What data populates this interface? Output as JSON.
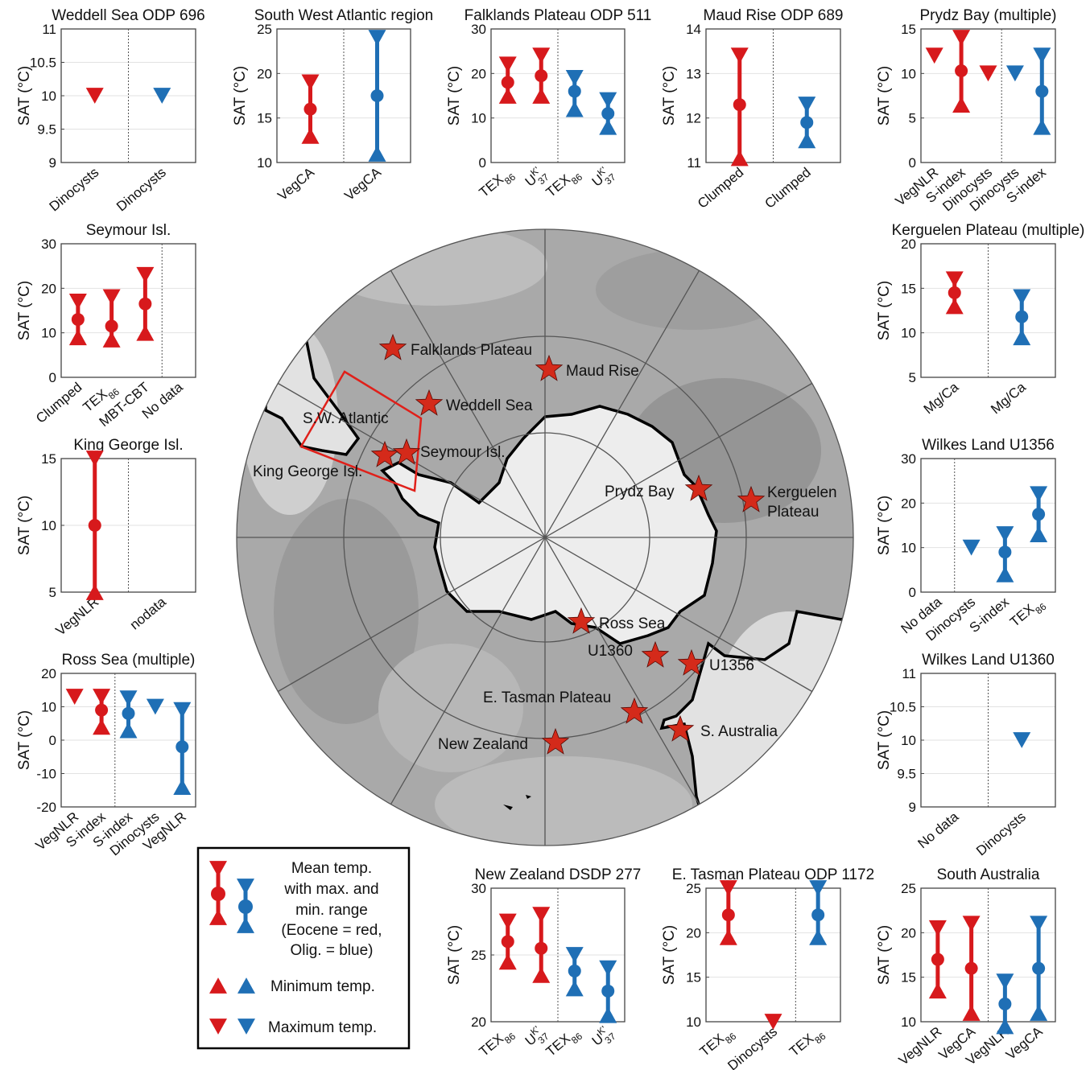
{
  "colors": {
    "eocene": "#d7191c",
    "oligocene": "#1f6fb5",
    "axis": "#333333",
    "grid": "#dddddd",
    "star": "#d42a1a"
  },
  "chart_data": [
    {
      "type": "range",
      "title": "Weddell Sea ODP 696",
      "ylabel": "SAT (°C)",
      "ylim": [
        9,
        11
      ],
      "yticks": [
        9,
        9.5,
        10,
        10.5,
        11
      ],
      "categories": [
        "Dinocysts",
        "Dinocysts"
      ],
      "divider": 1.5,
      "series": [
        {
          "color": "red",
          "x": 1,
          "max": 10
        },
        {
          "color": "blue",
          "x": 2,
          "max": 10
        }
      ]
    },
    {
      "type": "range",
      "title": "South West Atlantic region",
      "ylabel": "SAT (°C)",
      "ylim": [
        10,
        25
      ],
      "yticks": [
        10,
        15,
        20,
        25
      ],
      "categories": [
        "VegCA",
        "VegCA"
      ],
      "divider": 1.5,
      "series": [
        {
          "color": "red",
          "x": 1,
          "min": 13,
          "mean": 16,
          "max": 19
        },
        {
          "color": "blue",
          "x": 2,
          "min": 11,
          "mean": 17.5,
          "max": 24
        }
      ]
    },
    {
      "type": "range",
      "title": "Falklands Plateau ODP 511",
      "ylabel": "SAT (°C)",
      "ylim": [
        0,
        30
      ],
      "yticks": [
        0,
        10,
        20,
        30
      ],
      "categories": [
        "TEX86",
        "U^K'37",
        "TEX86",
        "U^K'37"
      ],
      "divider": 2.5,
      "series": [
        {
          "color": "red",
          "x": 1,
          "min": 15,
          "mean": 18,
          "max": 22
        },
        {
          "color": "red",
          "x": 2,
          "min": 15,
          "mean": 19.5,
          "max": 24
        },
        {
          "color": "blue",
          "x": 3,
          "min": 12,
          "mean": 16,
          "max": 19
        },
        {
          "color": "blue",
          "x": 4,
          "min": 8,
          "mean": 11,
          "max": 14
        }
      ]
    },
    {
      "type": "range",
      "title": "Maud Rise ODP 689",
      "ylabel": "SAT (°C)",
      "ylim": [
        11,
        14
      ],
      "yticks": [
        11,
        12,
        13,
        14
      ],
      "categories": [
        "Clumped",
        "Clumped"
      ],
      "divider": 1.5,
      "series": [
        {
          "color": "red",
          "x": 1,
          "min": 11.1,
          "mean": 12.3,
          "max": 13.4
        },
        {
          "color": "blue",
          "x": 2,
          "min": 11.5,
          "mean": 11.9,
          "max": 12.3
        }
      ]
    },
    {
      "type": "range",
      "title": "Prydz Bay (multiple)",
      "ylabel": "SAT (°C)",
      "ylim": [
        0,
        15
      ],
      "yticks": [
        0,
        5,
        10,
        15
      ],
      "categories": [
        "VegNLR",
        "S-index",
        "Dinocysts",
        "Dinocysts",
        "S-index"
      ],
      "divider": 3.5,
      "series": [
        {
          "color": "red",
          "x": 1,
          "max": 12
        },
        {
          "color": "red",
          "x": 2,
          "min": 6.5,
          "mean": 10.3,
          "max": 14
        },
        {
          "color": "red",
          "x": 3,
          "max": 10
        },
        {
          "color": "blue",
          "x": 4,
          "max": 10
        },
        {
          "color": "blue",
          "x": 5,
          "min": 4,
          "mean": 8,
          "max": 12
        }
      ]
    },
    {
      "type": "range",
      "title": "Seymour Isl.",
      "ylabel": "SAT (°C)",
      "ylim": [
        0,
        30
      ],
      "yticks": [
        0,
        10,
        20,
        30
      ],
      "categories": [
        "Clumped",
        "TEX86",
        "MBT-CBT",
        "No data"
      ],
      "divider": 3.5,
      "series": [
        {
          "color": "red",
          "x": 1,
          "min": 9,
          "mean": 13,
          "max": 17
        },
        {
          "color": "red",
          "x": 2,
          "min": 8.5,
          "mean": 11.5,
          "max": 18
        },
        {
          "color": "red",
          "x": 3,
          "min": 10,
          "mean": 16.5,
          "max": 23
        }
      ]
    },
    {
      "type": "range",
      "title": "Kerguelen Plateau (multiple)",
      "ylabel": "SAT (°C)",
      "ylim": [
        5,
        20
      ],
      "yticks": [
        5,
        10,
        15,
        20
      ],
      "categories": [
        "Mg/Ca",
        "Mg/Ca"
      ],
      "divider": 1.5,
      "series": [
        {
          "color": "red",
          "x": 1,
          "min": 13,
          "mean": 14.5,
          "max": 16
        },
        {
          "color": "blue",
          "x": 2,
          "min": 9.5,
          "mean": 11.8,
          "max": 14
        }
      ]
    },
    {
      "type": "range",
      "title": "King George Isl.",
      "ylabel": "SAT (°C)",
      "ylim": [
        5,
        15
      ],
      "yticks": [
        5,
        10,
        15
      ],
      "categories": [
        "VegNLR",
        "nodata"
      ],
      "divider": 1.5,
      "series": [
        {
          "color": "red",
          "x": 1,
          "min": 5,
          "mean": 10,
          "max": 15
        }
      ]
    },
    {
      "type": "range",
      "title": "Wilkes Land U1356",
      "ylabel": "SAT (°C)",
      "ylim": [
        0,
        30
      ],
      "yticks": [
        0,
        10,
        20,
        30
      ],
      "categories": [
        "No data",
        "Dinocysts",
        "S-index",
        "TEX86"
      ],
      "divider": 1.5,
      "series": [
        {
          "color": "blue",
          "x": 2,
          "max": 10
        },
        {
          "color": "blue",
          "x": 3,
          "min": 4,
          "mean": 9,
          "max": 13
        },
        {
          "color": "blue",
          "x": 4,
          "min": 13,
          "mean": 17.5,
          "max": 22
        }
      ]
    },
    {
      "type": "range",
      "title": "Ross Sea (multiple)",
      "ylabel": "SAT (°C)",
      "ylim": [
        -20,
        20
      ],
      "yticks": [
        -20,
        -10,
        0,
        10,
        20
      ],
      "categories": [
        "VegNLR",
        "S-index",
        "S-index",
        "Dinocysts",
        "VegNLR"
      ],
      "divider": 2.5,
      "series": [
        {
          "color": "red",
          "x": 1,
          "max": 13
        },
        {
          "color": "red",
          "x": 2,
          "min": 4,
          "mean": 9,
          "max": 13
        },
        {
          "color": "blue",
          "x": 3,
          "min": 3,
          "mean": 8,
          "max": 12.5
        },
        {
          "color": "blue",
          "x": 4,
          "max": 10
        },
        {
          "color": "blue",
          "x": 5,
          "min": -14,
          "mean": -2,
          "max": 9
        }
      ]
    },
    {
      "type": "range",
      "title": "Wilkes Land U1360",
      "ylabel": "SAT (°C)",
      "ylim": [
        9,
        11
      ],
      "yticks": [
        9,
        9.5,
        10,
        10.5,
        11
      ],
      "categories": [
        "No data",
        "Dinocysts"
      ],
      "divider": 1.5,
      "series": [
        {
          "color": "blue",
          "x": 2,
          "max": 10
        }
      ]
    },
    {
      "type": "range",
      "title": "New Zealand DSDP 277",
      "ylabel": "SAT (°C)",
      "ylim": [
        20,
        30
      ],
      "yticks": [
        20,
        25,
        30
      ],
      "categories": [
        "TEX86",
        "U^K'37",
        "TEX86",
        "U^K'37"
      ],
      "divider": 2.5,
      "series": [
        {
          "color": "red",
          "x": 1,
          "min": 24.5,
          "mean": 26,
          "max": 27.5
        },
        {
          "color": "red",
          "x": 2,
          "min": 23.5,
          "mean": 25.5,
          "max": 28
        },
        {
          "color": "blue",
          "x": 3,
          "min": 22.5,
          "mean": 23.8,
          "max": 25
        },
        {
          "color": "blue",
          "x": 4,
          "min": 20.5,
          "mean": 22.3,
          "max": 24
        }
      ]
    },
    {
      "type": "range",
      "title": "E. Tasman Plateau ODP 1172",
      "ylabel": "SAT (°C)",
      "ylim": [
        10,
        25
      ],
      "yticks": [
        10,
        15,
        20,
        25
      ],
      "categories": [
        "TEX86",
        "Dinocysts",
        "TEX86"
      ],
      "divider": 2.5,
      "series": [
        {
          "color": "red",
          "x": 1,
          "min": 19.5,
          "mean": 22,
          "max": 25
        },
        {
          "color": "red",
          "x": 2,
          "max": 10
        },
        {
          "color": "blue",
          "x": 3,
          "min": 19.5,
          "mean": 22,
          "max": 25
        }
      ]
    },
    {
      "type": "range",
      "title": "South Australia",
      "ylabel": "SAT (°C)",
      "ylim": [
        10,
        25
      ],
      "yticks": [
        10,
        15,
        20,
        25
      ],
      "categories": [
        "VegNLR",
        "VegCA",
        "VegNLR",
        "VegCA"
      ],
      "divider": 2.5,
      "series": [
        {
          "color": "red",
          "x": 1,
          "min": 13.5,
          "mean": 17,
          "max": 20.5
        },
        {
          "color": "red",
          "x": 2,
          "min": 11,
          "mean": 16,
          "max": 21
        },
        {
          "color": "blue",
          "x": 3,
          "min": 9.5,
          "mean": 12,
          "max": 14.5
        },
        {
          "color": "blue",
          "x": 4,
          "min": 11,
          "mean": 16,
          "max": 21
        }
      ]
    }
  ],
  "map": {
    "sites": [
      {
        "label": "Falklands Plateau"
      },
      {
        "label": "Maud Rise"
      },
      {
        "label": "Weddell Sea"
      },
      {
        "label": "S.W. Atlantic"
      },
      {
        "label": "Seymour Isl."
      },
      {
        "label": "King George Isl."
      },
      {
        "label": "Prydz Bay"
      },
      {
        "label": "Kerguelen"
      },
      {
        "label": "Plateau"
      },
      {
        "label": "Ross Sea"
      },
      {
        "label": "U1360"
      },
      {
        "label": "U1356"
      },
      {
        "label": "E. Tasman Plateau"
      },
      {
        "label": "S. Australia"
      },
      {
        "label": "New Zealand"
      }
    ]
  },
  "legend": {
    "range_lines": [
      "Mean temp.",
      "with max. and",
      "min. range",
      "(Eocene = red,",
      "Olig. = blue)"
    ],
    "min_label": "Minimum temp.",
    "max_label": "Maximum temp."
  }
}
